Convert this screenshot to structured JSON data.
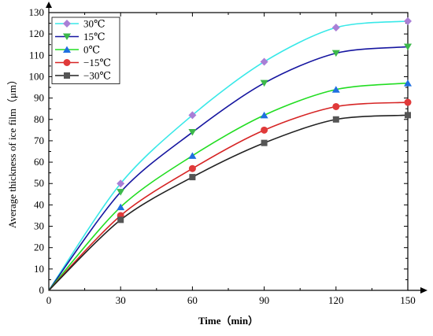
{
  "chart_data": {
    "type": "line",
    "xlabel": "Time（min）",
    "ylabel": "Average thickness of ice film（μm）",
    "x": [
      0,
      30,
      60,
      90,
      120,
      150
    ],
    "xlim": [
      0,
      150
    ],
    "ylim": [
      0,
      130
    ],
    "xticks": [
      0,
      30,
      60,
      90,
      120,
      150
    ],
    "yticks": [
      0,
      10,
      20,
      30,
      40,
      50,
      60,
      70,
      80,
      90,
      100,
      110,
      120,
      130
    ],
    "legend_position": "top-left",
    "grid": false,
    "series": [
      {
        "name": "30℃",
        "color": "#38e8e8",
        "marker": "diamond",
        "marker_color": "#a97fd6",
        "values": [
          0,
          50,
          82,
          107,
          123,
          126
        ]
      },
      {
        "name": "15℃",
        "color": "#1616a0",
        "marker": "triangle-down",
        "marker_color": "#3cb84a",
        "values": [
          0,
          46,
          74,
          97,
          111,
          114
        ]
      },
      {
        "name": "0℃",
        "color": "#22dd22",
        "marker": "triangle-up",
        "marker_color": "#1f6fe0",
        "values": [
          0,
          39,
          63,
          82,
          94,
          97
        ]
      },
      {
        "name": "−15℃",
        "color": "#d62424",
        "marker": "circle",
        "marker_color": "#e03a3a",
        "values": [
          0,
          35,
          57,
          75,
          86,
          88
        ]
      },
      {
        "name": "−30℃",
        "color": "#222222",
        "marker": "square",
        "marker_color": "#555555",
        "values": [
          0,
          33,
          53,
          69,
          80,
          82
        ]
      }
    ]
  }
}
